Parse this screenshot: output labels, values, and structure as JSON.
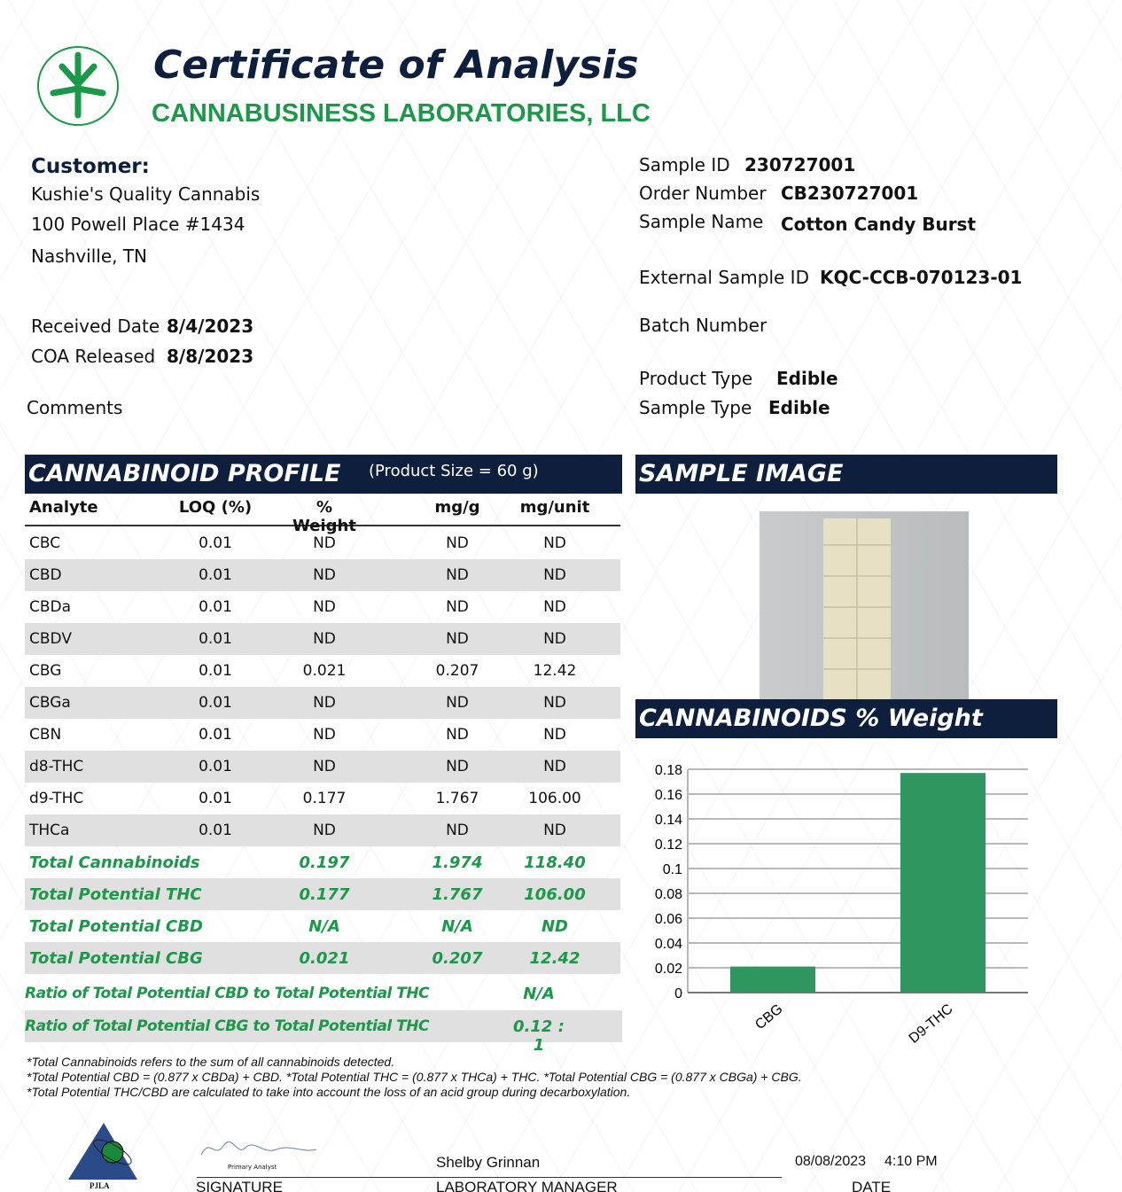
{
  "header": {
    "title": "Certificate of Analysis",
    "lab": "CANNABUSINESS LABORATORIES, LLC"
  },
  "customer": {
    "label": "Customer:",
    "name": "Kushie's Quality Cannabis",
    "address1": "100 Powell Place #1434",
    "address2": "Nashville, TN"
  },
  "dates": {
    "received_label": "Received Date",
    "received": "8/4/2023",
    "released_label": "COA Released",
    "released": "8/8/2023"
  },
  "comments_label": "Comments",
  "sample": {
    "id_label": "Sample ID",
    "id": "230727001",
    "order_label": "Order Number",
    "order": "CB230727001",
    "name_label": "Sample Name",
    "name": "Cotton Candy Burst",
    "ext_label": "External Sample ID",
    "ext": "KQC-CCB-070123-01",
    "batch_label": "Batch Number",
    "product_type_label": "Product Type",
    "product_type": "Edible",
    "sample_type_label": "Sample Type",
    "sample_type": "Edible"
  },
  "profile": {
    "title": "CANNABINOID PROFILE",
    "product_size": "(Product Size = 60 g)",
    "columns": [
      "Analyte",
      "LOQ (%)",
      "% Weight",
      "mg/g",
      "mg/unit"
    ],
    "rows": [
      [
        "CBC",
        "0.01",
        "ND",
        "ND",
        "ND"
      ],
      [
        "CBD",
        "0.01",
        "ND",
        "ND",
        "ND"
      ],
      [
        "CBDa",
        "0.01",
        "ND",
        "ND",
        "ND"
      ],
      [
        "CBDV",
        "0.01",
        "ND",
        "ND",
        "ND"
      ],
      [
        "CBG",
        "0.01",
        "0.021",
        "0.207",
        "12.42"
      ],
      [
        "CBGa",
        "0.01",
        "ND",
        "ND",
        "ND"
      ],
      [
        "CBN",
        "0.01",
        "ND",
        "ND",
        "ND"
      ],
      [
        "d8-THC",
        "0.01",
        "ND",
        "ND",
        "ND"
      ],
      [
        "d9-THC",
        "0.01",
        "0.177",
        "1.767",
        "106.00"
      ],
      [
        "THCa",
        "0.01",
        "ND",
        "ND",
        "ND"
      ]
    ],
    "totals": [
      [
        "Total Cannabinoids",
        "0.197",
        "1.974",
        "118.40"
      ],
      [
        "Total Potential THC",
        "0.177",
        "1.767",
        "106.00"
      ],
      [
        "Total Potential CBD",
        "N/A",
        "N/A",
        "ND"
      ],
      [
        "Total Potential CBG",
        "0.021",
        "0.207",
        "12.42"
      ]
    ],
    "ratios": [
      [
        "Ratio of Total Potential CBD to Total Potential THC",
        "N/A"
      ],
      [
        "Ratio of Total Potential CBG to Total Potential THC",
        "0.12  : 1"
      ]
    ]
  },
  "sample_image_title": "SAMPLE IMAGE",
  "chart_title": "CANNABINOIDS % Weight",
  "chart_data": {
    "type": "bar",
    "categories": [
      "CBG",
      "D9-THC"
    ],
    "values": [
      0.021,
      0.177
    ],
    "ylim": [
      0,
      0.18
    ],
    "yticks": [
      "0",
      "0.02",
      "0.04",
      "0.06",
      "0.08",
      "0.1",
      "0.12",
      "0.14",
      "0.16",
      "0.18"
    ],
    "grid": true,
    "color": "#2f9660"
  },
  "notes": [
    "*Total Cannabinoids refers to the sum of all cannabinoids detected.",
    "*Total Potential CBD = (0.877 x CBDa) + CBD. *Total Potential THC = (0.877 x THCa) + THC. *Total Potential CBG = (0.877 x CBGa) + CBG.",
    "*Total Potential THC/CBD are calculated to take into account the loss of an acid group during decarboxylation."
  ],
  "footer": {
    "pjla": "PJLA",
    "primary_analyst": "Primary Analyst",
    "manager_name": "Shelby Grinnan",
    "date": "08/08/2023",
    "time": "4:10 PM",
    "signature_label": "SIGNATURE",
    "manager_label": "LABORATORY MANAGER",
    "date_label": "DATE"
  },
  "colors": {
    "navy": "#0d1f3c",
    "green": "#1a9a48"
  }
}
